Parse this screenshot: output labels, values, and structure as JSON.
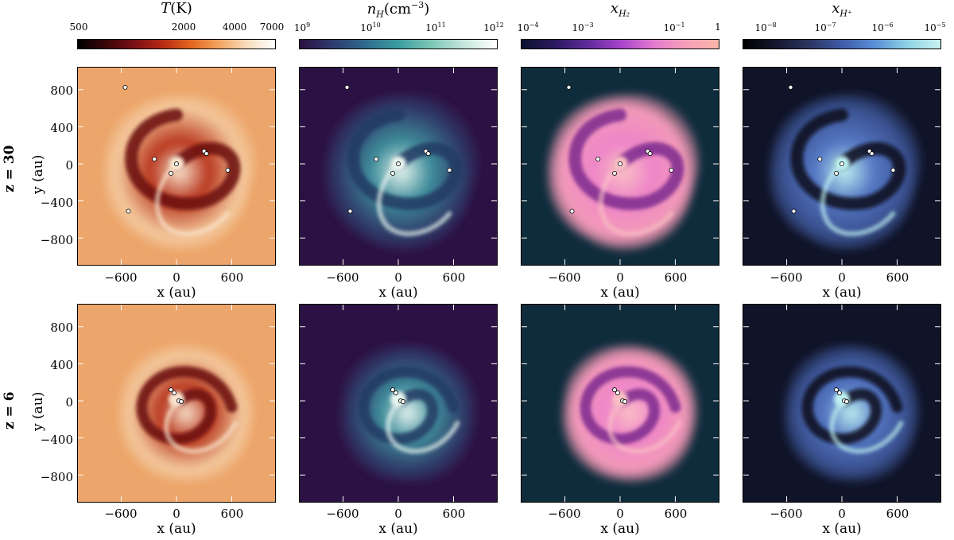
{
  "colorbars": [
    {
      "title_main": "T",
      "title_rest": "(K)",
      "ticks": [
        "500",
        "2000",
        "4000",
        "7000"
      ],
      "stops": [
        "#000000",
        "#3a0508",
        "#7a1016",
        "#b52a14",
        "#e2651e",
        "#f3a460",
        "#f8dcbc",
        "#ffffff"
      ]
    },
    {
      "title_main": "n",
      "title_sub": "H",
      "title_rest": "(cm",
      "title_sup": "−3",
      "title_end": ")",
      "ticks": [
        "9",
        "10",
        "11",
        "12"
      ],
      "stops": [
        "#2a1140",
        "#2e3a6e",
        "#2f6b8e",
        "#3b9da0",
        "#7cc6b6",
        "#c6e6dc",
        "#ffffff"
      ]
    },
    {
      "title_main": "x",
      "title_sub": "H₂",
      "ticks": [
        "−4",
        "−3",
        "−1",
        "1"
      ],
      "stops": [
        "#0b1030",
        "#2a1a5e",
        "#5d2a9a",
        "#a443c8",
        "#e27ad0",
        "#f6a0b8",
        "#f9b5a8"
      ]
    },
    {
      "title_main": "x",
      "title_sub": "H⁺",
      "ticks": [
        "−8",
        "−7",
        "−6",
        "−5"
      ],
      "stops": [
        "#000000",
        "#15182e",
        "#2c3560",
        "#3f5aa8",
        "#5a8fd6",
        "#8fd3e4",
        "#c8f2f0"
      ]
    }
  ],
  "panel_colors": {
    "T": {
      "bg": "#eca56a",
      "outer": "#f4c99d",
      "mid": "#b8351c",
      "dark": "#6a0c10",
      "light": "#f9e3cc"
    },
    "n": {
      "bg": "#2c1244",
      "outer": "#2f3a68",
      "mid": "#3f8e9c",
      "dark": "#233a64",
      "light": "#e6f4ee"
    },
    "xH2": {
      "bg": "#0f2c3c",
      "outer": "#f39ab8",
      "mid": "#ee85c8",
      "dark": "#7d2a8e",
      "light": "#fbc0c4"
    },
    "xHp": {
      "bg": "#101428",
      "outer": "#39508e",
      "mid": "#5577c4",
      "dark": "#0c0e1c",
      "light": "#bdf0f0"
    }
  },
  "axes": {
    "xticks": [
      "−600",
      "0",
      "600"
    ],
    "yticks": [
      "800",
      "400",
      "0",
      "−400",
      "−800"
    ],
    "xlabel": "x (au)",
    "ylabel": "y (au)"
  },
  "rows": [
    {
      "label": "z = 30"
    },
    {
      "label": "z = 6"
    }
  ]
}
